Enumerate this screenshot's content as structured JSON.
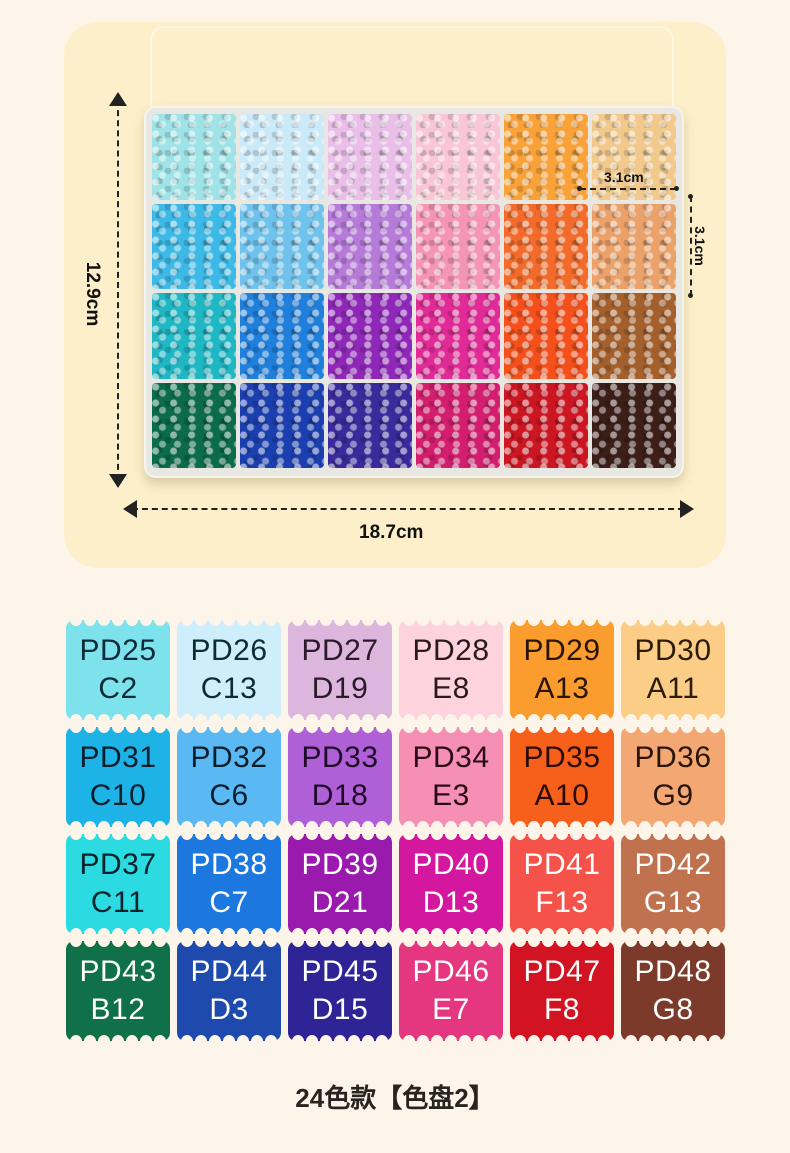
{
  "dimensions": {
    "height": "12.9cm",
    "width": "18.7cm",
    "cell_w": "3.1cm",
    "cell_h": "3.1cm"
  },
  "tray_colors": [
    "#9fe3e6",
    "#cbe9f6",
    "#e9bfe8",
    "#f8c6d6",
    "#f9a23a",
    "#f2c98c",
    "#3cb9e6",
    "#6fc2ec",
    "#b67ad9",
    "#f595b6",
    "#f36b2a",
    "#eaa16a",
    "#1fb7c4",
    "#1f7fdb",
    "#8f28b8",
    "#e02a95",
    "#f5501c",
    "#a3602d",
    "#0b6b4a",
    "#1c3fb0",
    "#3b2a9c",
    "#d21e6d",
    "#cc1622",
    "#3d1f1a"
  ],
  "swatches": [
    {
      "code": "PD25",
      "sub": "C2",
      "bg": "#7ee2ec",
      "fg": "#0c2a3a"
    },
    {
      "code": "PD26",
      "sub": "C13",
      "bg": "#cfeefb",
      "fg": "#0c2a3a"
    },
    {
      "code": "PD27",
      "sub": "D19",
      "bg": "#dcb6dc",
      "fg": "#2a1a2a"
    },
    {
      "code": "PD28",
      "sub": "E8",
      "bg": "#fdd3de",
      "fg": "#2a1a20"
    },
    {
      "code": "PD29",
      "sub": "A13",
      "bg": "#fb9c2e",
      "fg": "#2a1406"
    },
    {
      "code": "PD30",
      "sub": "A11",
      "bg": "#fccd86",
      "fg": "#2a1c08"
    },
    {
      "code": "PD31",
      "sub": "C10",
      "bg": "#1eb3e6",
      "fg": "#0a1e2c"
    },
    {
      "code": "PD32",
      "sub": "C6",
      "bg": "#5ab9f3",
      "fg": "#0a1e2c"
    },
    {
      "code": "PD33",
      "sub": "D18",
      "bg": "#b060d6",
      "fg": "#1e0a26"
    },
    {
      "code": "PD34",
      "sub": "E3",
      "bg": "#f58fb4",
      "fg": "#2a0a18"
    },
    {
      "code": "PD35",
      "sub": "A10",
      "bg": "#f6601b",
      "fg": "#2a0a02"
    },
    {
      "code": "PD36",
      "sub": "G9",
      "bg": "#f3a873",
      "fg": "#2a1406"
    },
    {
      "code": "PD37",
      "sub": "C11",
      "bg": "#2cdbe2",
      "fg": "#06222a"
    },
    {
      "code": "PD38",
      "sub": "C7",
      "bg": "#1c78de",
      "fg": "#ffffff"
    },
    {
      "code": "PD39",
      "sub": "D21",
      "bg": "#9a1aae",
      "fg": "#ffffff"
    },
    {
      "code": "PD40",
      "sub": "D13",
      "bg": "#d3179f",
      "fg": "#ffffff"
    },
    {
      "code": "PD41",
      "sub": "F13",
      "bg": "#f5524a",
      "fg": "#ffffff"
    },
    {
      "code": "PD42",
      "sub": "G13",
      "bg": "#c0714e",
      "fg": "#ffffff"
    },
    {
      "code": "PD43",
      "sub": "B12",
      "bg": "#10704a",
      "fg": "#ffffff"
    },
    {
      "code": "PD44",
      "sub": "D3",
      "bg": "#1e49ad",
      "fg": "#ffffff"
    },
    {
      "code": "PD45",
      "sub": "D15",
      "bg": "#2e2495",
      "fg": "#ffffff"
    },
    {
      "code": "PD46",
      "sub": "E7",
      "bg": "#e4377f",
      "fg": "#ffffff"
    },
    {
      "code": "PD47",
      "sub": "F8",
      "bg": "#d21322",
      "fg": "#ffffff"
    },
    {
      "code": "PD48",
      "sub": "G8",
      "bg": "#7b3a2a",
      "fg": "#ffffff"
    }
  ],
  "caption": "24色款【色盘2】"
}
